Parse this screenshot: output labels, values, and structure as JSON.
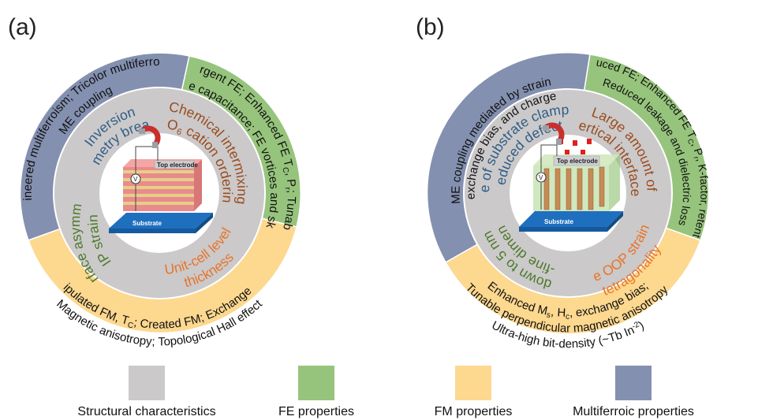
{
  "colors": {
    "structural": "#cbc9ca",
    "fe": "#96c47c",
    "fm": "#fdd88f",
    "multiferroic": "#8490b0",
    "blue_text": "#2f5d86",
    "brown_text": "#9a4b1c",
    "green_text": "#4c7a2a",
    "orange_text": "#e8742a"
  },
  "panels": [
    {
      "label": "(a)",
      "outer": {
        "multiferroic": [
          "Engineered multiferroism; Tricolor multiferroism;",
          "ME coupling"
        ],
        "fe": [
          "Emergent FE; Enhanced FE T",
          "C",
          ", P",
          "r",
          "; Tunable ε",
          "r",
          ";",
          "Negative capacitance; FE vortices and skyrmions"
        ],
        "fm": [
          "Manipulated FM, T",
          "C",
          "; Created FM; Exchange bias;",
          "Magnetic anisotropy; Topological Hall effect"
        ]
      },
      "middle": {
        "blue": [
          "Inversion",
          "symmetry breaking"
        ],
        "brown": [
          "Chemical intermixing",
          "BO",
          "6",
          " cation ordering"
        ],
        "green": [
          "IP strain",
          "Interface asymmetry"
        ],
        "orange": [
          "Unit-cell level",
          "thickness"
        ]
      },
      "device": {
        "top": "Top electrode",
        "substrate": "Substrate",
        "meter": "V"
      }
    },
    {
      "label": "(b)",
      "outer": {
        "multiferroic": [
          "ME coupling mediated by strain,",
          "exchange bias, and charge"
        ],
        "fe": [
          "Induced FE; Enhanced FE T",
          "C",
          ", P",
          "r",
          ", K-factor, retention;",
          "Reduced leakage and dielectric loss"
        ],
        "fm": [
          "Enhanced M",
          "s",
          ", H",
          "c",
          ", exchange bias;",
          "Tunable perpendicular magnetic anisotropy;",
          "Ultra-high bit-density (~Tb In",
          "-2",
          ")"
        ]
      },
      "middle": {
        "blue": [
          "Free of substrate clamping",
          "Reduced defects"
        ],
        "brown": [
          "Large amount of",
          "vertical interfaces"
        ],
        "green": [
          "Ultra-fine dimension",
          "(down to 5 nm)"
        ],
        "orange": [
          "Large OOP strain and",
          "tetragonality"
        ]
      },
      "device": {
        "top": "Top electrode",
        "substrate": "Substrate",
        "meter": "V"
      }
    }
  ],
  "legend": [
    {
      "label": "Structural characteristics",
      "color": "#cbc9ca"
    },
    {
      "label": "FE properties",
      "color": "#96c47c"
    },
    {
      "label": "FM properties",
      "color": "#fdd88f"
    },
    {
      "label": "Multiferroic properties",
      "color": "#8490b0"
    }
  ]
}
